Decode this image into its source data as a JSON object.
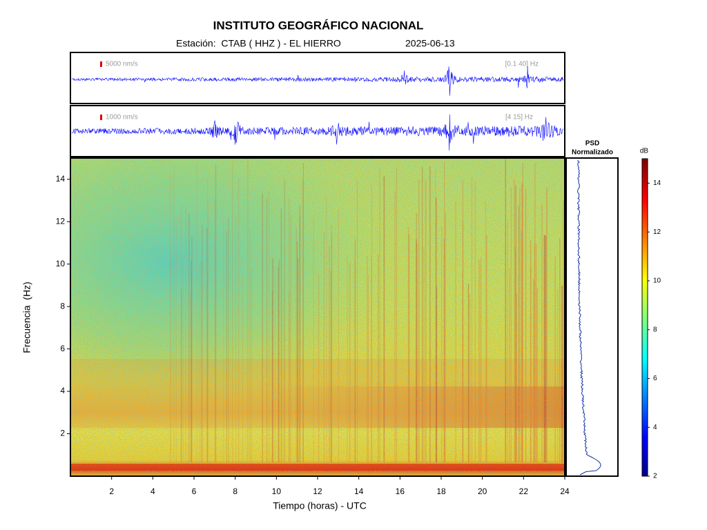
{
  "chart_data": {
    "type": "spectrogram",
    "title": "INSTITUTO GEOGRÁFICO NACIONAL",
    "subtitle": "Estación:  CTAB ( HHZ ) - EL HIERRO",
    "date": "2025-06-13",
    "traces": [
      {
        "scale": "5000 nm/s",
        "band": "[0.1 40] Hz"
      },
      {
        "scale": "1000 nm/s",
        "band": "[4 15] Hz"
      }
    ],
    "x_label": "Tiempo (horas) - UTC",
    "y_label": "Frecuencia  (Hz)",
    "xlim": [
      0,
      24
    ],
    "xticks": [
      2,
      4,
      6,
      8,
      10,
      12,
      14,
      16,
      18,
      20,
      22,
      24
    ],
    "ylim": [
      0,
      15
    ],
    "yticks": [
      2,
      4,
      6,
      8,
      10,
      12,
      14
    ],
    "psd_title": [
      "PSD",
      "Normalizado"
    ],
    "colorbar": {
      "label": "dB",
      "lim": [
        2,
        15
      ],
      "ticks": [
        2,
        4,
        6,
        8,
        10,
        12,
        14
      ]
    }
  }
}
